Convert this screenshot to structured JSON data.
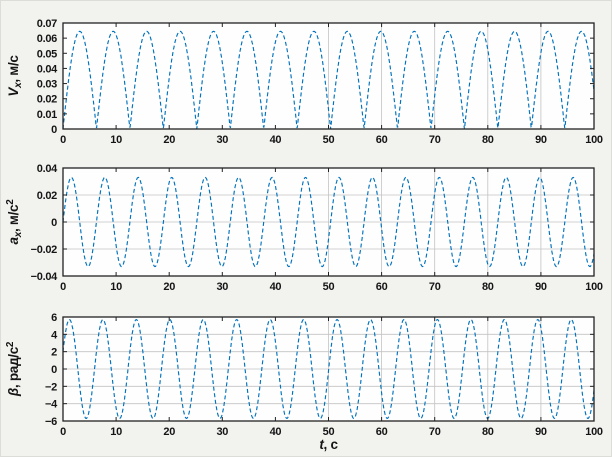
{
  "figure": {
    "description": "Three stacked MATLAB-style oscillation plots: linear velocity, linear acceleration, angular acceleration versus time",
    "bg_color": "#f2f2ef",
    "plot_bg_color": "#fefefe",
    "axis_color": "#222222",
    "grid_color": "#c3c3c3",
    "tick_label_color": "#151515",
    "curve_color": "#0072bd",
    "curve_style": "dashed"
  },
  "chart_data": [
    {
      "name": "velocity",
      "type": "line",
      "title": "",
      "ylabel": "Vx, м/с",
      "ylabel_parts": [
        {
          "text": "V",
          "italic": true
        },
        {
          "text": "x",
          "italic": true,
          "script": "sub"
        },
        {
          "text": ", м/с"
        }
      ],
      "xlabel": "",
      "xlabel_parts": [],
      "xlim": [
        0,
        100
      ],
      "ylim": [
        0,
        0.07
      ],
      "xticks": {
        "values": [
          0,
          10,
          20,
          30,
          40,
          50,
          60,
          70,
          80,
          90,
          100
        ],
        "labels": [
          "0",
          "10",
          "20",
          "30",
          "40",
          "50",
          "60",
          "70",
          "80",
          "90",
          "100"
        ]
      },
      "yticks": {
        "values": [
          0,
          0.01,
          0.02,
          0.03,
          0.04,
          0.05,
          0.06,
          0.07
        ],
        "labels": [
          "0",
          "0.01",
          "0.02",
          "0.03",
          "0.04",
          "0.05",
          "0.06",
          "0.07"
        ]
      },
      "grid_x": [
        50,
        60,
        70,
        80,
        90
      ],
      "grid_y": [],
      "legend": null,
      "series": [
        {
          "name": "Vx",
          "color": "#0072bd",
          "line_style": "dashed",
          "waveform": "abs_sin",
          "amplitude": 0.0645,
          "period_s": 12.6,
          "time_shift_s": 0,
          "offset": 0,
          "peak_value": 0.065,
          "min_value": 0,
          "peak_spacing_s": 6.3
        }
      ]
    },
    {
      "name": "acceleration",
      "type": "line",
      "title": "",
      "ylabel": "ax, м/с2",
      "ylabel_parts": [
        {
          "text": "a",
          "italic": true
        },
        {
          "text": "x",
          "italic": true,
          "script": "sub"
        },
        {
          "text": ", м/с"
        },
        {
          "text": "2",
          "script": "sup"
        }
      ],
      "xlabel": "",
      "xlabel_parts": [],
      "xlim": [
        0,
        100
      ],
      "ylim": [
        -0.04,
        0.04
      ],
      "xticks": {
        "values": [
          0,
          10,
          20,
          30,
          40,
          50,
          60,
          70,
          80,
          90,
          100
        ],
        "labels": [
          "0",
          "10",
          "20",
          "30",
          "40",
          "50",
          "60",
          "70",
          "80",
          "90",
          "100"
        ]
      },
      "yticks": {
        "values": [
          -0.04,
          -0.02,
          0,
          0.02,
          0.04
        ],
        "labels": [
          "−0.04",
          "−0.02",
          "0",
          "0.02",
          "0.04"
        ]
      },
      "grid_x": [
        50,
        60,
        70,
        80,
        90
      ],
      "grid_y": [
        0.02,
        0,
        -0.02
      ],
      "legend": null,
      "series": [
        {
          "name": "ax",
          "color": "#0072bd",
          "line_style": "dashed",
          "waveform": "sin",
          "amplitude": 0.033,
          "period_s": 6.3,
          "time_shift_s": 0,
          "offset": 0,
          "peak_value": 0.033,
          "min_value": -0.033
        }
      ]
    },
    {
      "name": "angular-acceleration",
      "type": "line",
      "title": "",
      "ylabel": "β, рад/с2",
      "ylabel_parts": [
        {
          "text": "β",
          "italic": true
        },
        {
          "text": ", рад/с"
        },
        {
          "text": "2",
          "script": "sup"
        }
      ],
      "xlabel": "t, с",
      "xlabel_parts": [
        {
          "text": "t",
          "italic": true
        },
        {
          "text": ", с"
        }
      ],
      "xlim": [
        0,
        100
      ],
      "ylim": [
        -6,
        6
      ],
      "xticks": {
        "values": [
          0,
          10,
          20,
          30,
          40,
          50,
          60,
          70,
          80,
          90,
          100
        ],
        "labels": [
          "0",
          "10",
          "20",
          "30",
          "40",
          "50",
          "60",
          "70",
          "80",
          "90",
          "100"
        ]
      },
      "yticks": {
        "values": [
          -6,
          -4,
          -2,
          0,
          2,
          4,
          6
        ],
        "labels": [
          "−6",
          "−4",
          "−2",
          "0",
          "2",
          "4",
          "6"
        ]
      },
      "grid_x": [
        50,
        60,
        70,
        80,
        90
      ],
      "grid_y": [
        4,
        2,
        0,
        -2,
        -4
      ],
      "legend": null,
      "series": [
        {
          "name": "beta",
          "color": "#0072bd",
          "line_style": "dashed",
          "waveform": "sin",
          "amplitude": 5.7,
          "period_s": 6.3,
          "time_shift_s": 0.36,
          "offset": 0,
          "peak_value": 5.7,
          "min_value": -5.7
        }
      ]
    }
  ]
}
